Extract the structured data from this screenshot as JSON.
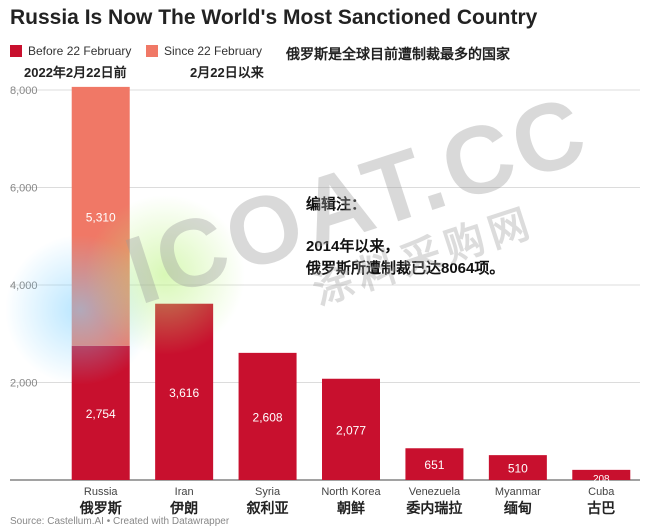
{
  "chart_data": {
    "type": "bar",
    "stacked": true,
    "title": "Russia Is Now The World's Most Sanctioned Country",
    "subtitle_cn": "俄罗斯是全球目前遭制裁最多的国家",
    "categories": [
      "Russia",
      "Iran",
      "Syria",
      "North Korea",
      "Venezuela",
      "Myanmar",
      "Cuba"
    ],
    "categories_cn": [
      "俄罗斯",
      "伊朗",
      "叙利亚",
      "朝鲜",
      "委内瑞拉",
      "缅甸",
      "古巴"
    ],
    "series": [
      {
        "name": "Before 22 February",
        "name_cn": "2022年2月22日前",
        "color": "#c8102e",
        "values": [
          2754,
          3616,
          2608,
          2077,
          651,
          510,
          208
        ]
      },
      {
        "name": "Since 22 February",
        "name_cn": "2月22日以来",
        "color": "#f07866",
        "values": [
          5310,
          0,
          0,
          0,
          0,
          0,
          0
        ]
      }
    ],
    "data_labels": [
      "2,754",
      "3,616",
      "2,608",
      "2,077",
      "651",
      "510",
      "208"
    ],
    "since_labels": [
      "5,310"
    ],
    "ylim": [
      0,
      8000
    ],
    "yticks": [
      0,
      2000,
      4000,
      6000,
      8000
    ],
    "ytick_labels": [
      "",
      "2,000",
      "4,000",
      "6,000",
      "8,000"
    ],
    "grid": true
  },
  "legend": {
    "before_label": "Before 22 February",
    "since_label": "Since 22 February",
    "before_cn": "2022年2月22日前",
    "since_cn": "2月22日以来",
    "before_color": "#c8102e",
    "since_color": "#f07866"
  },
  "annotation": {
    "heading": "编辑注：",
    "line1": "2014年以来，",
    "line2": "俄罗斯所遭制裁已达8064项。"
  },
  "source": "Source: Castellum.AI • Created with Datawrapper",
  "watermark": {
    "main": "ICOAT.CC",
    "sub": "涂料采购网"
  }
}
